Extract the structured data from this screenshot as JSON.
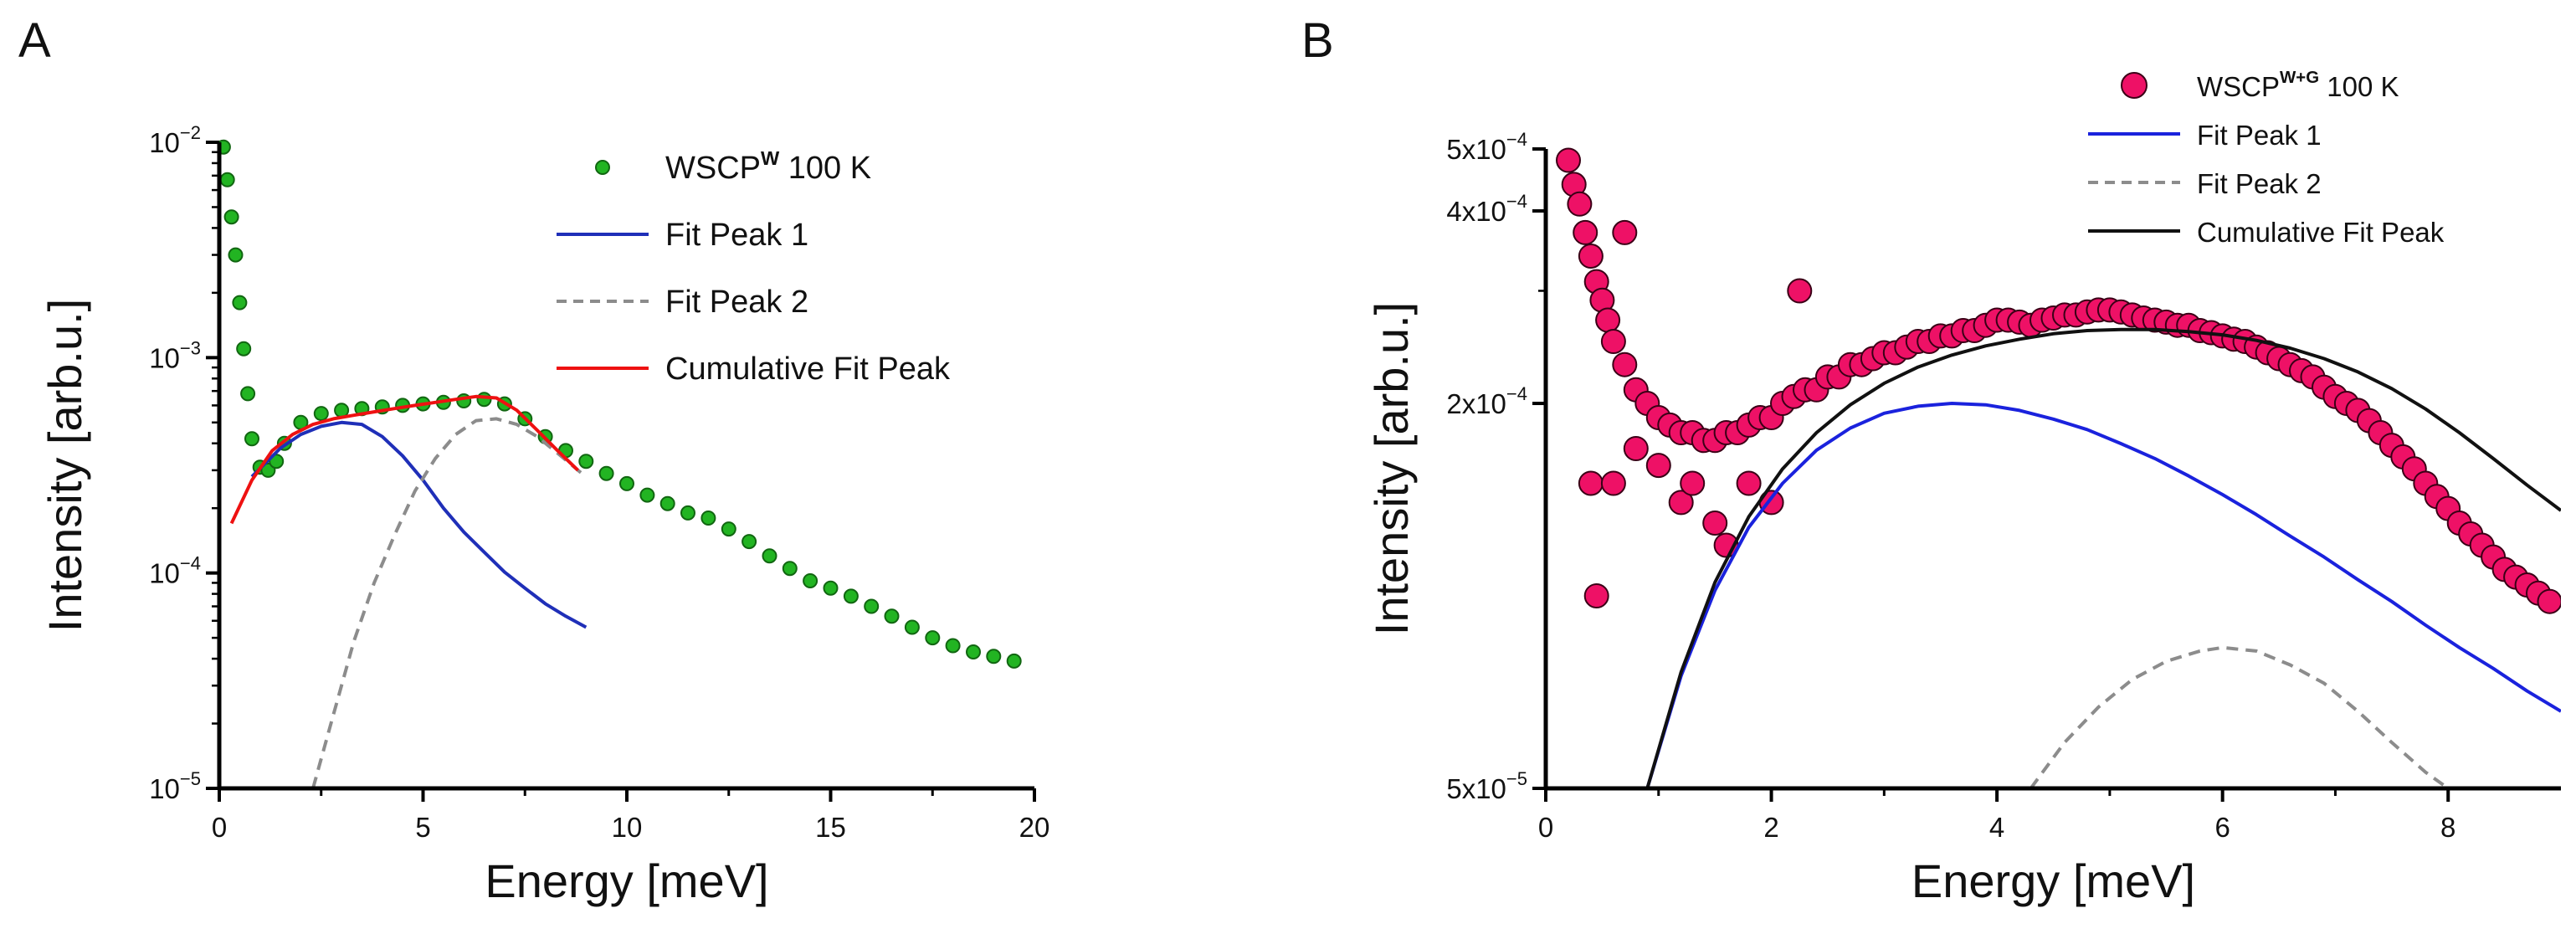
{
  "figure": {
    "panels": [
      "A",
      "B"
    ]
  },
  "colors": {
    "green": "#22b422",
    "green_edge": "#116611",
    "pink": "#ee1166",
    "pink_edge": "#3a0016",
    "blue": "#1f2fb8",
    "blue_b": "#1a22dd",
    "gray": "#8c8c8c",
    "red": "#ee1111",
    "black": "#111111"
  },
  "chart_data": [
    {
      "panel": "A",
      "type": "scatter",
      "title": "",
      "xlabel": "Energy [meV]",
      "ylabel": "Intensity [arb.u.]",
      "xlim": [
        0,
        20
      ],
      "ylim": [
        1e-05,
        0.01
      ],
      "yscale": "log",
      "xticks": [
        0,
        5,
        10,
        15,
        20
      ],
      "yticks": [
        {
          "v": 1e-05,
          "base": "10",
          "exp": "-5"
        },
        {
          "v": 0.0001,
          "base": "10",
          "exp": "-4"
        },
        {
          "v": 0.001,
          "base": "10",
          "exp": "-3"
        },
        {
          "v": 0.01,
          "base": "10",
          "exp": "-2"
        }
      ],
      "grid": false,
      "legend_position": "top-right",
      "legend": [
        {
          "kind": "marker",
          "label": "WSCP",
          "sup": "W",
          "suffix": " 100 K"
        },
        {
          "kind": "line",
          "label": "Fit Peak 1"
        },
        {
          "kind": "dash",
          "label": "Fit Peak 2"
        },
        {
          "kind": "line",
          "label": "Cumulative Fit Peak"
        }
      ],
      "series": [
        {
          "name": "WSCP W 100 K",
          "kind": "scatter",
          "x": [
            0.1,
            0.2,
            0.3,
            0.4,
            0.5,
            0.6,
            0.7,
            0.8,
            1.0,
            1.2,
            1.4,
            1.6,
            2.0,
            2.5,
            3.0,
            3.5,
            4.0,
            4.5,
            5.0,
            5.5,
            6.0,
            6.5,
            7.0,
            7.5,
            8.0,
            8.5,
            9.0,
            9.5,
            10.0,
            10.5,
            11.0,
            11.5,
            12.0,
            12.5,
            13.0,
            13.5,
            14.0,
            14.5,
            15.0,
            15.5,
            16.0,
            16.5,
            17.0,
            17.5,
            18.0,
            18.5,
            19.0,
            19.5
          ],
          "y": [
            0.0095,
            0.0067,
            0.0045,
            0.003,
            0.0018,
            0.0011,
            0.00068,
            0.00042,
            0.00031,
            0.0003,
            0.00033,
            0.0004,
            0.0005,
            0.00055,
            0.00057,
            0.00058,
            0.00059,
            0.0006,
            0.00061,
            0.00062,
            0.00063,
            0.00064,
            0.00061,
            0.00052,
            0.00043,
            0.00037,
            0.00033,
            0.00029,
            0.00026,
            0.00023,
            0.00021,
            0.00019,
            0.00018,
            0.00016,
            0.00014,
            0.00012,
            0.000105,
            9.2e-05,
            8.5e-05,
            7.8e-05,
            7e-05,
            6.3e-05,
            5.6e-05,
            5e-05,
            4.6e-05,
            4.3e-05,
            4.1e-05,
            3.9e-05
          ]
        },
        {
          "name": "Fit Peak 1",
          "kind": "line",
          "x": [
            0.8,
            1.5,
            2.0,
            2.5,
            3.0,
            3.5,
            4.0,
            4.5,
            5.0,
            5.5,
            6.0,
            6.5,
            7.0,
            7.5,
            8.0,
            8.5,
            9.0
          ],
          "y": [
            0.00028,
            0.00038,
            0.00044,
            0.00048,
            0.0005,
            0.00049,
            0.00043,
            0.00035,
            0.00027,
            0.0002,
            0.000155,
            0.000125,
            0.000101,
            8.5e-05,
            7.2e-05,
            6.3e-05,
            5.6e-05
          ]
        },
        {
          "name": "Fit Peak 2",
          "kind": "dash",
          "x": [
            2.3,
            2.8,
            3.3,
            3.8,
            4.3,
            4.8,
            5.3,
            5.8,
            6.3,
            6.8,
            7.3,
            7.8,
            8.3,
            8.8,
            9.0
          ],
          "y": [
            1e-05,
            2.2e-05,
            4.8e-05,
            9e-05,
            0.00015,
            0.00024,
            0.00034,
            0.00044,
            0.00051,
            0.00052,
            0.00049,
            0.00043,
            0.00036,
            0.0003,
            0.00028
          ]
        },
        {
          "name": "Cumulative Fit Peak",
          "kind": "line",
          "x": [
            0.3,
            0.8,
            1.3,
            1.8,
            2.3,
            2.8,
            3.3,
            3.8,
            4.3,
            4.8,
            5.3,
            5.8,
            6.3,
            6.8,
            7.3,
            7.8,
            8.3,
            8.8
          ],
          "y": [
            0.00017,
            0.00027,
            0.00037,
            0.00044,
            0.00049,
            0.00052,
            0.00054,
            0.00056,
            0.00058,
            0.0006,
            0.00062,
            0.00064,
            0.00066,
            0.00065,
            0.00057,
            0.00046,
            0.00037,
            0.0003
          ]
        }
      ]
    },
    {
      "panel": "B",
      "type": "scatter",
      "title": "",
      "xlabel": "Energy [meV]",
      "ylabel": "Intensity [arb.u.]",
      "xlim": [
        0,
        9
      ],
      "ylim": [
        5e-05,
        0.0005
      ],
      "yscale": "log",
      "xticks": [
        0,
        2,
        4,
        6,
        8
      ],
      "yticks": [
        {
          "v": 5e-05,
          "base": "5x10",
          "exp": "-5"
        },
        {
          "v": 0.0002,
          "base": "2x10",
          "exp": "-4"
        },
        {
          "v": 0.0004,
          "base": "4x10",
          "exp": "-4"
        },
        {
          "v": 0.0005,
          "base": "5x10",
          "exp": "-4"
        }
      ],
      "grid": false,
      "legend_position": "top-right",
      "legend": [
        {
          "kind": "marker",
          "label": "WSCP",
          "sup": "W+G",
          "suffix": " 100 K"
        },
        {
          "kind": "line",
          "label": "Fit Peak 1"
        },
        {
          "kind": "dash",
          "label": "Fit Peak 2"
        },
        {
          "kind": "line",
          "label": "Cumulative Fit Peak"
        }
      ],
      "series": [
        {
          "name": "WSCP W+G 100 K",
          "kind": "scatter",
          "x": [
            0.2,
            0.25,
            0.3,
            0.35,
            0.4,
            0.45,
            0.5,
            0.55,
            0.6,
            0.7,
            0.8,
            0.9,
            1.0,
            1.1,
            1.2,
            1.3,
            1.4,
            1.5,
            1.6,
            1.7,
            1.8,
            1.9,
            2.0,
            2.1,
            2.2,
            2.3,
            2.4,
            2.5,
            2.6,
            2.7,
            2.8,
            2.9,
            3.0,
            3.1,
            3.2,
            3.3,
            3.4,
            3.5,
            3.6,
            3.7,
            3.8,
            3.9,
            4.0,
            4.1,
            4.2,
            4.3,
            4.4,
            4.5,
            4.6,
            4.7,
            4.8,
            4.9,
            5.0,
            5.1,
            5.2,
            5.3,
            5.4,
            5.5,
            5.6,
            5.7,
            5.8,
            5.9,
            6.0,
            6.1,
            6.2,
            6.3,
            6.4,
            6.5,
            6.6,
            6.7,
            6.8,
            6.9,
            7.0,
            7.1,
            7.2,
            7.3,
            7.4,
            7.5,
            7.6,
            7.7,
            7.8,
            7.9,
            8.0,
            8.1,
            8.2,
            8.3,
            8.4,
            8.5,
            8.6,
            8.7,
            8.8,
            8.9,
            0.4,
            0.6,
            0.8,
            1.0,
            1.2,
            1.5,
            1.8,
            2.0,
            2.25,
            0.45,
            0.7,
            1.3,
            1.6
          ],
          "y": [
            0.00048,
            0.00044,
            0.00041,
            0.00037,
            0.00034,
            0.00031,
            0.00029,
            0.00027,
            0.00025,
            0.00023,
            0.00021,
            0.0002,
            0.00019,
            0.000185,
            0.00018,
            0.00018,
            0.000175,
            0.000175,
            0.00018,
            0.00018,
            0.000185,
            0.00019,
            0.00019,
            0.0002,
            0.000205,
            0.00021,
            0.00021,
            0.00022,
            0.00022,
            0.00023,
            0.00023,
            0.000235,
            0.00024,
            0.00024,
            0.000245,
            0.00025,
            0.00025,
            0.000255,
            0.000255,
            0.00026,
            0.00026,
            0.000265,
            0.00027,
            0.00027,
            0.000268,
            0.000265,
            0.00027,
            0.000272,
            0.000275,
            0.000275,
            0.000278,
            0.00028,
            0.00028,
            0.000278,
            0.000275,
            0.000272,
            0.00027,
            0.000268,
            0.000265,
            0.000265,
            0.00026,
            0.000258,
            0.000255,
            0.000252,
            0.00025,
            0.000245,
            0.00024,
            0.000235,
            0.00023,
            0.000225,
            0.00022,
            0.000212,
            0.000205,
            0.0002,
            0.000195,
            0.000188,
            0.00018,
            0.000172,
            0.000165,
            0.000158,
            0.00015,
            0.000143,
            0.000137,
            0.00013,
            0.000125,
            0.00012,
            0.000115,
            0.00011,
            0.000107,
            0.000104,
            0.000101,
            9.8e-05,
            0.00015,
            0.00015,
            0.00017,
            0.00016,
            0.00014,
            0.00013,
            0.00015,
            0.00014,
            0.0003,
            0.0001,
            0.00037,
            0.00015,
            0.00012
          ]
        },
        {
          "name": "Fit Peak 1",
          "kind": "line",
          "x": [
            0.9,
            1.2,
            1.5,
            1.8,
            2.1,
            2.4,
            2.7,
            3.0,
            3.3,
            3.6,
            3.9,
            4.2,
            4.5,
            4.8,
            5.1,
            5.4,
            5.7,
            6.0,
            6.3,
            6.6,
            6.9,
            7.2,
            7.5,
            7.8,
            8.1,
            8.4,
            8.7,
            9.0
          ],
          "y": [
            5e-05,
            7.5e-05,
            0.000102,
            0.000128,
            0.00015,
            0.000169,
            0.000183,
            0.000193,
            0.000198,
            0.0002,
            0.000199,
            0.000195,
            0.000189,
            0.000182,
            0.000173,
            0.000164,
            0.000154,
            0.000144,
            0.000134,
            0.000124,
            0.000115,
            0.000106,
            9.8e-05,
            9e-05,
            8.3e-05,
            7.7e-05,
            7.1e-05,
            6.6e-05
          ]
        },
        {
          "name": "Fit Peak 2",
          "kind": "dash",
          "x": [
            4.3,
            4.6,
            4.9,
            5.2,
            5.5,
            5.8,
            6.0,
            6.3,
            6.6,
            6.9,
            7.2,
            7.5,
            7.8,
            8.0
          ],
          "y": [
            5e-05,
            5.9e-05,
            6.7e-05,
            7.4e-05,
            7.9e-05,
            8.2e-05,
            8.3e-05,
            8.2e-05,
            7.8e-05,
            7.3e-05,
            6.6e-05,
            5.9e-05,
            5.3e-05,
            5e-05
          ]
        },
        {
          "name": "Cumulative Fit Peak",
          "kind": "line",
          "x": [
            0.9,
            1.2,
            1.5,
            1.8,
            2.1,
            2.4,
            2.7,
            3.0,
            3.3,
            3.6,
            3.9,
            4.2,
            4.5,
            4.8,
            5.1,
            5.4,
            5.7,
            6.0,
            6.3,
            6.6,
            6.9,
            7.2,
            7.5,
            7.8,
            8.1,
            8.4,
            8.7,
            9.0
          ],
          "y": [
            5e-05,
            7.6e-05,
            0.000105,
            0.000133,
            0.000158,
            0.00018,
            0.000199,
            0.000215,
            0.000228,
            0.000238,
            0.000246,
            0.000252,
            0.000257,
            0.00026,
            0.000261,
            0.000261,
            0.000259,
            0.000256,
            0.000251,
            0.000244,
            0.000235,
            0.000224,
            0.000211,
            0.000196,
            0.00018,
            0.000164,
            0.000149,
            0.000136
          ]
        }
      ]
    }
  ]
}
